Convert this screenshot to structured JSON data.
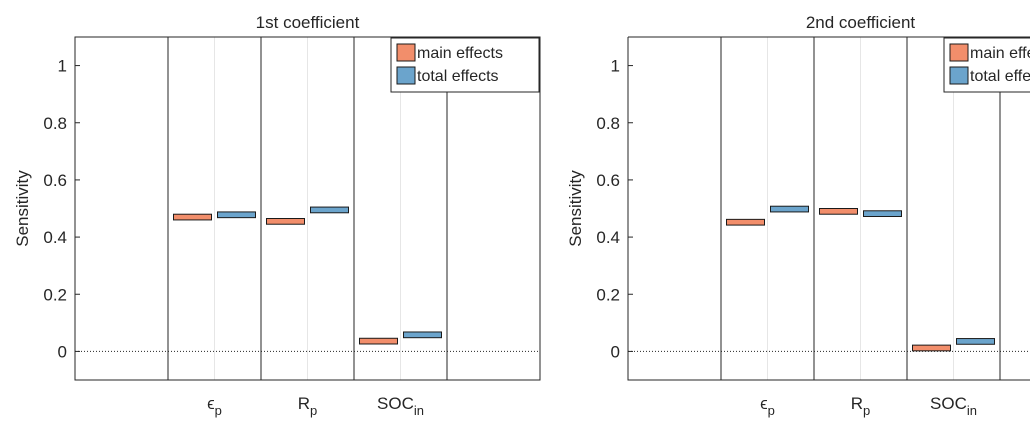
{
  "chart_data": [
    {
      "type": "bar",
      "title": "1st coefficient",
      "ylabel": "Sensitivity",
      "xlabel": "",
      "ylim": [
        -0.1,
        1.1
      ],
      "yticks": [
        0,
        0.2,
        0.4,
        0.6,
        0.8,
        1
      ],
      "ytick_labels": [
        "0",
        "0.2",
        "0.4",
        "0.6",
        "0.8",
        "1"
      ],
      "categories": [
        {
          "main": "ϵ",
          "sub": "p"
        },
        {
          "main": "R",
          "sub": "p"
        },
        {
          "main": "SOC",
          "sub": "in"
        }
      ],
      "series": [
        {
          "name": "main effects",
          "color": "#f28e6b",
          "values": [
            0.47,
            0.455,
            0.036
          ]
        },
        {
          "name": "total effects",
          "color": "#6ba4cc",
          "values": [
            0.478,
            0.495,
            0.058
          ]
        }
      ],
      "box_halfheight": 0.01,
      "legend": "top-right",
      "grid": false,
      "zero_line": "dotted"
    },
    {
      "type": "bar",
      "title": "2nd coefficient",
      "ylabel": "Sensitivity",
      "xlabel": "",
      "ylim": [
        -0.1,
        1.1
      ],
      "yticks": [
        0,
        0.2,
        0.4,
        0.6,
        0.8,
        1
      ],
      "ytick_labels": [
        "0",
        "0.2",
        "0.4",
        "0.6",
        "0.8",
        "1"
      ],
      "categories": [
        {
          "main": "ϵ",
          "sub": "p"
        },
        {
          "main": "R",
          "sub": "p"
        },
        {
          "main": "SOC",
          "sub": "in"
        }
      ],
      "series": [
        {
          "name": "main effects",
          "color": "#f28e6b",
          "values": [
            0.452,
            0.49,
            0.012
          ]
        },
        {
          "name": "total effects",
          "color": "#6ba4cc",
          "values": [
            0.498,
            0.482,
            0.035
          ]
        }
      ],
      "box_halfheight": 0.01,
      "legend": "top-right",
      "grid": false,
      "zero_line": "dotted"
    }
  ]
}
